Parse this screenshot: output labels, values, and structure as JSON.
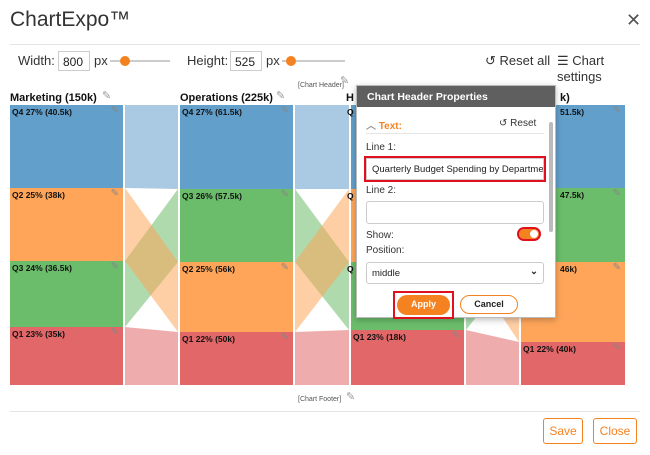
{
  "app": {
    "title": "ChartExpo™",
    "close_icon": "close-icon"
  },
  "toolbar": {
    "width_label": "Width:",
    "width_value": "800",
    "width_unit": "px",
    "width_slider": 0.25,
    "height_label": "Height:",
    "height_value": "525",
    "height_unit": "px",
    "height_slider": 0.15,
    "reset_all": "Reset all",
    "chart_settings": "Chart settings"
  },
  "chart": {
    "header_placeholder": "[Chart Header]",
    "footer_placeholder": "[Chart Footer]",
    "columns": [
      {
        "title": "Marketing (150k)",
        "segments": [
          {
            "label": "Q4 27% (40.5k)",
            "q": "Q4"
          },
          {
            "label": "Q2 25% (38k)",
            "q": "Q2"
          },
          {
            "label": "Q3 24% (36.5k)",
            "q": "Q3"
          },
          {
            "label": "Q1 23% (35k)",
            "q": "Q1"
          }
        ]
      },
      {
        "title": "Operations (225k)",
        "segments": [
          {
            "label": "Q4 27% (61.5k)",
            "q": "Q4"
          },
          {
            "label": "Q3 26% (57.5k)",
            "q": "Q3"
          },
          {
            "label": "Q2 25% (56k)",
            "q": "Q2"
          },
          {
            "label": "Q1 22% (50k)",
            "q": "Q1"
          }
        ]
      },
      {
        "title": "H",
        "segments": [
          {
            "label": "Q",
            "q": "Q4"
          },
          {
            "label": "Q",
            "q": "Q2"
          },
          {
            "label": "Q",
            "q": "Q3"
          },
          {
            "label": "Q1 23% (18k)",
            "q": "Q1"
          }
        ]
      },
      {
        "title": "k)",
        "segments": [
          {
            "label": "51.5k)",
            "q": "Q4"
          },
          {
            "label": "47.5k)",
            "q": "Q3"
          },
          {
            "label": "46k)",
            "q": "Q2"
          },
          {
            "label": "Q1 22% (40k)",
            "q": "Q1"
          }
        ]
      }
    ],
    "colors": {
      "Q4": "#629fca",
      "Q3": "#6bbc6b",
      "Q2": "#fea55a",
      "Q1": "#e26768"
    }
  },
  "dialog": {
    "title": "Chart Header Properties",
    "section": "Text:",
    "reset": "Reset",
    "line1_label": "Line 1:",
    "line1_value": "Quarterly Budget Spending by Departme",
    "line2_label": "Line 2:",
    "line2_value": "",
    "show_label": "Show:",
    "show_on": true,
    "position_label": "Position:",
    "position_value": "middle",
    "apply": "Apply",
    "cancel": "Cancel"
  },
  "footer": {
    "save": "Save",
    "close": "Close"
  }
}
